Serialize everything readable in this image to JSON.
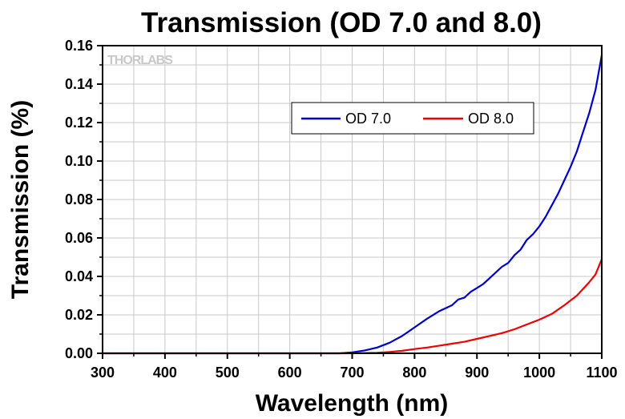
{
  "chart_data": {
    "type": "line",
    "title": "Transmission (OD 7.0 and 8.0)",
    "xlabel": "Wavelength (nm)",
    "ylabel": "Transmission (%)",
    "xlim": [
      300,
      1100
    ],
    "ylim": [
      0,
      0.16
    ],
    "x_ticks": [
      "300",
      "400",
      "500",
      "600",
      "700",
      "800",
      "900",
      "1000",
      "1100"
    ],
    "y_ticks": [
      "0.00",
      "0.02",
      "0.04",
      "0.06",
      "0.08",
      "0.10",
      "0.12",
      "0.14",
      "0.16"
    ],
    "grid": true,
    "legend_position": "upper-center",
    "watermark": "THORLABS",
    "series": [
      {
        "name": "OD 7.0",
        "color": "#0000cc",
        "points": [
          [
            300,
            0
          ],
          [
            400,
            0
          ],
          [
            500,
            0
          ],
          [
            600,
            0
          ],
          [
            680,
            0
          ],
          [
            700,
            0.0005
          ],
          [
            720,
            0.0015
          ],
          [
            740,
            0.003
          ],
          [
            760,
            0.0055
          ],
          [
            780,
            0.009
          ],
          [
            800,
            0.0135
          ],
          [
            820,
            0.018
          ],
          [
            840,
            0.022
          ],
          [
            860,
            0.025
          ],
          [
            870,
            0.028
          ],
          [
            880,
            0.029
          ],
          [
            890,
            0.032
          ],
          [
            900,
            0.034
          ],
          [
            910,
            0.036
          ],
          [
            920,
            0.039
          ],
          [
            930,
            0.042
          ],
          [
            940,
            0.045
          ],
          [
            950,
            0.047
          ],
          [
            960,
            0.051
          ],
          [
            970,
            0.054
          ],
          [
            980,
            0.059
          ],
          [
            990,
            0.062
          ],
          [
            1000,
            0.066
          ],
          [
            1010,
            0.071
          ],
          [
            1020,
            0.077
          ],
          [
            1030,
            0.083
          ],
          [
            1040,
            0.09
          ],
          [
            1050,
            0.097
          ],
          [
            1060,
            0.105
          ],
          [
            1070,
            0.115
          ],
          [
            1080,
            0.125
          ],
          [
            1090,
            0.137
          ],
          [
            1100,
            0.155
          ]
        ]
      },
      {
        "name": "OD 8.0",
        "color": "#ee0000",
        "points": [
          [
            300,
            0
          ],
          [
            400,
            0
          ],
          [
            500,
            0
          ],
          [
            600,
            0
          ],
          [
            700,
            0
          ],
          [
            740,
            0.0003
          ],
          [
            760,
            0.0007
          ],
          [
            780,
            0.0013
          ],
          [
            800,
            0.0022
          ],
          [
            820,
            0.003
          ],
          [
            840,
            0.004
          ],
          [
            860,
            0.005
          ],
          [
            880,
            0.006
          ],
          [
            900,
            0.0075
          ],
          [
            920,
            0.009
          ],
          [
            940,
            0.0105
          ],
          [
            960,
            0.0125
          ],
          [
            980,
            0.015
          ],
          [
            1000,
            0.0175
          ],
          [
            1020,
            0.0205
          ],
          [
            1040,
            0.025
          ],
          [
            1060,
            0.03
          ],
          [
            1080,
            0.037
          ],
          [
            1090,
            0.041
          ],
          [
            1100,
            0.049
          ]
        ]
      }
    ]
  }
}
